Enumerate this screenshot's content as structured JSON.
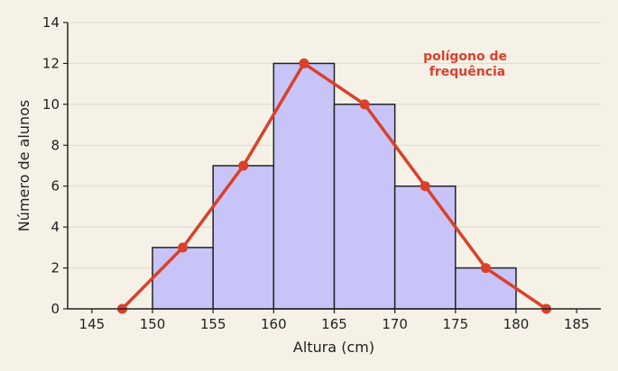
{
  "chart_data": {
    "type": "bar",
    "subtype": "histogram with frequency polygon",
    "xlabel": "Altura (cm)",
    "ylabel": "Número de alunos",
    "xlim": [
      143,
      187
    ],
    "ylim": [
      0,
      14
    ],
    "x_ticks": [
      145,
      150,
      155,
      160,
      165,
      170,
      175,
      180,
      185
    ],
    "y_ticks": [
      0,
      2,
      4,
      6,
      8,
      10,
      12,
      14
    ],
    "grid": "horizontal",
    "bins": [
      {
        "start": 150,
        "end": 155,
        "value": 3
      },
      {
        "start": 155,
        "end": 160,
        "value": 7
      },
      {
        "start": 160,
        "end": 165,
        "value": 12
      },
      {
        "start": 165,
        "end": 170,
        "value": 10
      },
      {
        "start": 170,
        "end": 175,
        "value": 6
      },
      {
        "start": 175,
        "end": 180,
        "value": 2
      }
    ],
    "polygon": {
      "x": [
        147.5,
        152.5,
        157.5,
        162.5,
        167.5,
        172.5,
        177.5,
        182.5
      ],
      "y": [
        0,
        3,
        7,
        12,
        10,
        6,
        2,
        0
      ]
    },
    "annotation_lines": [
      "polígono de",
      "frequência"
    ],
    "colors": {
      "background": "#f6f1e7",
      "bar_fill": "#c8c4f8",
      "bar_stroke": "#222222",
      "polygon": "#d9412b",
      "grid": "#ddd8cc",
      "axis": "#222222"
    }
  }
}
